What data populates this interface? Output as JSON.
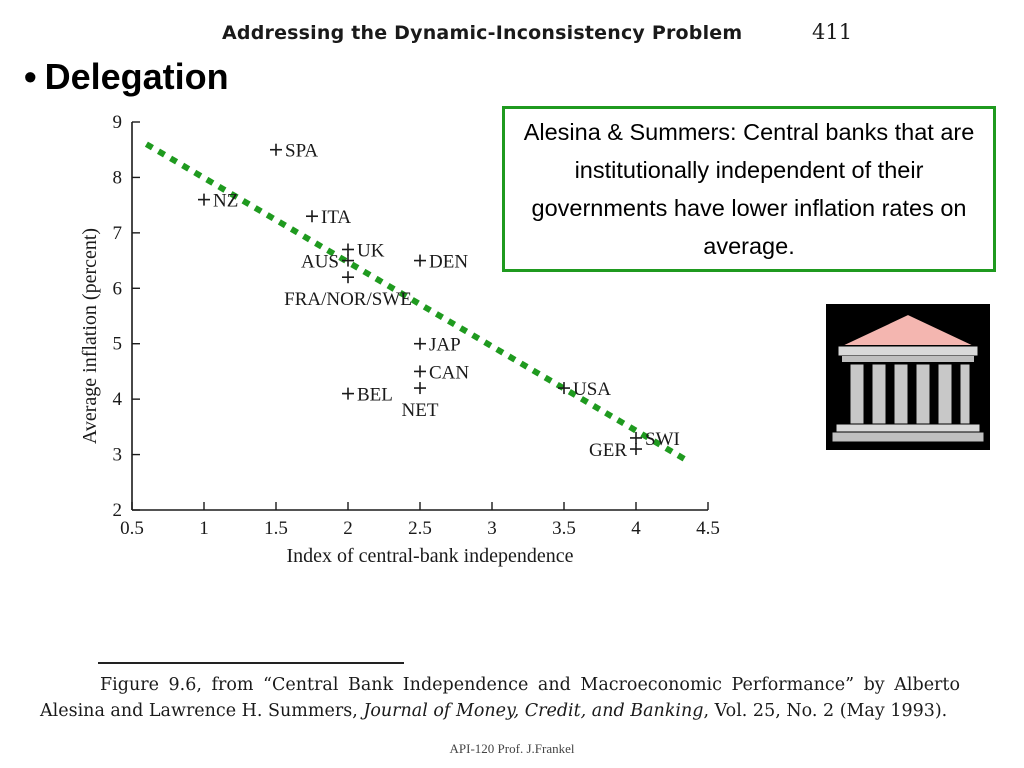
{
  "book_header": {
    "title": "Addressing the Dynamic-Inconsistency Problem",
    "page": "411"
  },
  "slide": {
    "bullet": "•",
    "heading": "Delegation"
  },
  "note": {
    "text": "Alesina & Summers:  Central banks that are institutionally independent of their governments have lower inflation rates on average."
  },
  "chart_data": {
    "type": "scatter",
    "title": "",
    "xlabel": "Index of central-bank independence",
    "ylabel": "Average inflation (percent)",
    "xlim": [
      0.5,
      4.5
    ],
    "ylim": [
      2,
      9
    ],
    "xticks": [
      0.5,
      1,
      1.5,
      2,
      2.5,
      3,
      3.5,
      4,
      4.5
    ],
    "xtick_labels": [
      "0.5",
      "1",
      "1.5",
      "2",
      "2.5",
      "3",
      "3.5",
      "4",
      "4.5"
    ],
    "yticks": [
      2,
      3,
      4,
      5,
      6,
      7,
      8,
      9
    ],
    "ytick_labels": [
      "2",
      "3",
      "4",
      "5",
      "6",
      "7",
      "8",
      "9"
    ],
    "grid": false,
    "marker": "+",
    "points": [
      {
        "label": "SPA",
        "x": 1.5,
        "y": 8.5,
        "label_side": "right"
      },
      {
        "label": "NZ",
        "x": 1.0,
        "y": 7.6,
        "label_side": "right"
      },
      {
        "label": "ITA",
        "x": 1.75,
        "y": 7.3,
        "label_side": "right"
      },
      {
        "label": "UK",
        "x": 2.0,
        "y": 6.7,
        "label_side": "right"
      },
      {
        "label": "AUS",
        "x": 2.0,
        "y": 6.5,
        "label_side": "left"
      },
      {
        "label": "FRA/NOR/SWE",
        "x": 2.0,
        "y": 6.2,
        "label_side": "below"
      },
      {
        "label": "DEN",
        "x": 2.5,
        "y": 6.5,
        "label_side": "right"
      },
      {
        "label": "JAP",
        "x": 2.5,
        "y": 5.0,
        "label_side": "right"
      },
      {
        "label": "CAN",
        "x": 2.5,
        "y": 4.5,
        "label_side": "right"
      },
      {
        "label": "NET",
        "x": 2.5,
        "y": 4.2,
        "label_side": "below"
      },
      {
        "label": "BEL",
        "x": 2.0,
        "y": 4.1,
        "label_side": "right"
      },
      {
        "label": "USA",
        "x": 3.5,
        "y": 4.2,
        "label_side": "right"
      },
      {
        "label": "SWI",
        "x": 4.0,
        "y": 3.3,
        "label_side": "right"
      },
      {
        "label": "GER",
        "x": 4.0,
        "y": 3.1,
        "label_side": "left"
      }
    ],
    "trend_line": {
      "style": "dotted",
      "color": "#1f9a1f",
      "from": [
        0.6,
        8.6
      ],
      "to": [
        4.35,
        2.9
      ]
    }
  },
  "figure_caption": {
    "prefix": "Figure 9.6, from “Central Bank Independence and Macroeconomic Performance” by Alberto Alesina and Lawrence H. Summers, ",
    "journal": "Journal of Money, Credit, and Banking",
    "suffix": ", Vol. 25, No. 2 (May 1993)."
  },
  "footer": {
    "text": "API-120  Prof. J.Frankel"
  },
  "icons": {
    "bank": "bank-building-icon"
  },
  "colors": {
    "trend": "#1f9a1f",
    "box_border": "#1f9a1f",
    "bank_roof": "#f4b6b0"
  }
}
